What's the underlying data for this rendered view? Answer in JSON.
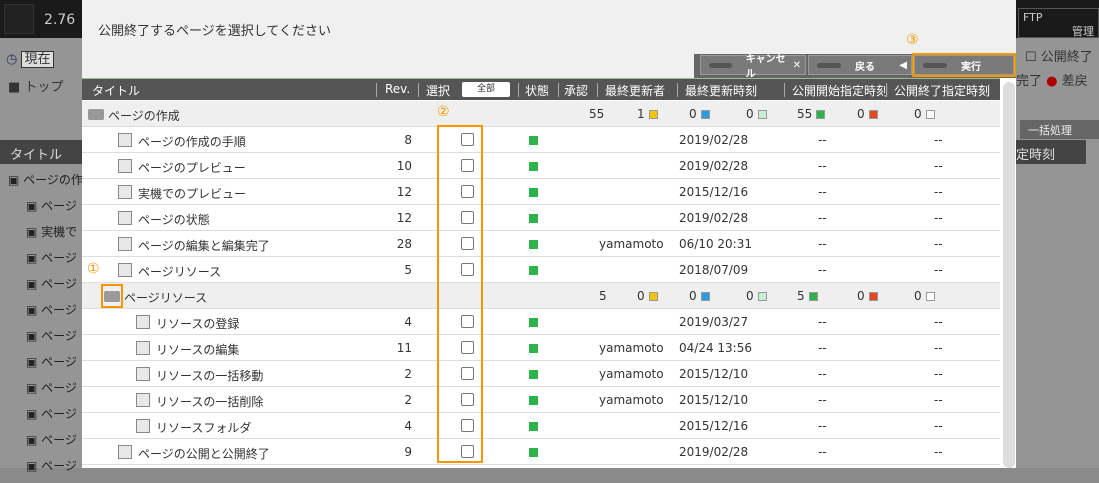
{
  "background": {
    "version": "2.76",
    "time_select": "現在",
    "breadcrumb": "トップ",
    "title_header": "タイトル",
    "ftp": "FTP",
    "admin": "管理",
    "unpublish_check": "公開終了",
    "done": "完了",
    "revert": "差戻",
    "bulk": "一括処理",
    "col_tail": "定時刻",
    "rows": [
      "ページの作成",
      "ページ",
      "実機で",
      "ページ",
      "ページ",
      "ページ",
      "ページ",
      "ページ",
      "ページ",
      "ページ",
      "ページ",
      "ページ"
    ]
  },
  "dialog": {
    "title": "公開終了するページを選択してください",
    "buttons": {
      "cancel": "キャンセル",
      "back": "戻る",
      "execute": "実行"
    },
    "columns": {
      "title": "タイトル",
      "rev": "Rev.",
      "select": "選択",
      "select_all": "全部",
      "state": "状態",
      "approve": "承認",
      "updater": "最終更新者",
      "updated": "最終更新時刻",
      "pub_start": "公開開始指定時刻",
      "pub_end": "公開終了指定時刻"
    },
    "callouts": [
      "①",
      "②",
      "③"
    ],
    "status_colors": {
      "yellow": "#f5c400",
      "blue": "#2a9be0",
      "lightgreen": "#c9efd2",
      "green": "#2db34a",
      "red": "#e8471c",
      "white": "#ffffff"
    },
    "rows": [
      {
        "type": "folder",
        "level": 0,
        "title": "ページの作成",
        "counts": [
          "55",
          "1",
          "0",
          "0",
          "55",
          "0",
          "0"
        ]
      },
      {
        "type": "page",
        "level": 1,
        "title": "ページの作成の手順",
        "rev": "8",
        "updater": "",
        "updated": "2019/02/28",
        "start": "--",
        "end": "--"
      },
      {
        "type": "page",
        "level": 1,
        "title": "ページのプレビュー",
        "rev": "10",
        "updater": "",
        "updated": "2019/02/28",
        "start": "--",
        "end": "--"
      },
      {
        "type": "page",
        "level": 1,
        "title": "実機でのプレビュー",
        "rev": "12",
        "updater": "",
        "updated": "2015/12/16",
        "start": "--",
        "end": "--"
      },
      {
        "type": "page",
        "level": 1,
        "title": "ページの状態",
        "rev": "12",
        "updater": "",
        "updated": "2019/02/28",
        "start": "--",
        "end": "--"
      },
      {
        "type": "page",
        "level": 1,
        "title": "ページの編集と編集完了",
        "rev": "28",
        "updater": "yamamoto",
        "updated": "06/10 20:31",
        "start": "--",
        "end": "--"
      },
      {
        "type": "page",
        "level": 1,
        "title": "ページリソース",
        "rev": "5",
        "updater": "",
        "updated": "2018/07/09",
        "start": "--",
        "end": "--"
      },
      {
        "type": "folder",
        "level": 1,
        "title": "ページリソース",
        "counts": [
          "5",
          "0",
          "0",
          "0",
          "5",
          "0",
          "0"
        ]
      },
      {
        "type": "page",
        "level": 2,
        "title": "リソースの登録",
        "rev": "4",
        "updater": "",
        "updated": "2019/03/27",
        "start": "--",
        "end": "--"
      },
      {
        "type": "page",
        "level": 2,
        "title": "リソースの編集",
        "rev": "11",
        "updater": "yamamoto",
        "updated": "04/24 13:56",
        "start": "--",
        "end": "--"
      },
      {
        "type": "page",
        "level": 2,
        "title": "リソースの一括移動",
        "rev": "2",
        "updater": "yamamoto",
        "updated": "2015/12/10",
        "start": "--",
        "end": "--"
      },
      {
        "type": "page",
        "level": 2,
        "title": "リソースの一括削除",
        "rev": "2",
        "updater": "yamamoto",
        "updated": "2015/12/10",
        "start": "--",
        "end": "--"
      },
      {
        "type": "page",
        "level": 2,
        "title": "リソースフォルダ",
        "rev": "4",
        "updater": "",
        "updated": "2015/12/16",
        "start": "--",
        "end": "--"
      },
      {
        "type": "page",
        "level": 1,
        "title": "ページの公開と公開終了",
        "rev": "9",
        "updater": "",
        "updated": "2019/02/28",
        "start": "--",
        "end": "--"
      }
    ]
  }
}
